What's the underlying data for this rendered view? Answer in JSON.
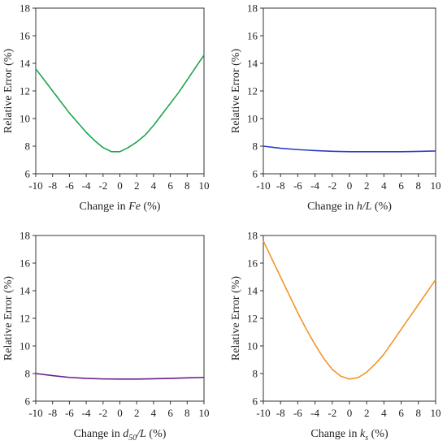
{
  "chart_data": [
    {
      "type": "line",
      "xlabel_prefix": "Change in ",
      "xlabel_var": "Fe",
      "xlabel_sub": "",
      "xlabel_rest": "",
      "xlabel_suffix": " (%)",
      "ylabel": "Relative Error (%)",
      "xlim": [
        -10,
        10
      ],
      "ylim": [
        6,
        18
      ],
      "xticks": [
        -10,
        -8,
        -6,
        -4,
        -2,
        0,
        2,
        4,
        6,
        8,
        10
      ],
      "yticks": [
        6,
        8,
        10,
        12,
        14,
        16,
        18
      ],
      "grid": false,
      "color": "#1aa64a",
      "series": [
        {
          "x": [
            -10,
            -9,
            -8,
            -7,
            -6,
            -5,
            -4,
            -3,
            -2,
            -1,
            0,
            1,
            2,
            3,
            4,
            5,
            6,
            7,
            8,
            9,
            10
          ],
          "y": [
            13.6,
            12.8,
            12.0,
            11.2,
            10.4,
            9.7,
            9.0,
            8.4,
            7.9,
            7.6,
            7.6,
            7.9,
            8.3,
            8.8,
            9.5,
            10.3,
            11.1,
            11.9,
            12.8,
            13.7,
            14.6
          ]
        }
      ]
    },
    {
      "type": "line",
      "xlabel_prefix": "Change in ",
      "xlabel_var": "h",
      "xlabel_sub": "",
      "xlabel_rest": "/L",
      "xlabel_suffix": " (%)",
      "ylabel": "Relative Error (%)",
      "xlim": [
        -10,
        10
      ],
      "ylim": [
        6,
        18
      ],
      "xticks": [
        -10,
        -8,
        -6,
        -4,
        -2,
        0,
        2,
        4,
        6,
        8,
        10
      ],
      "yticks": [
        6,
        8,
        10,
        12,
        14,
        16,
        18
      ],
      "grid": false,
      "color": "#2a3cc8",
      "series": [
        {
          "x": [
            -10,
            -8,
            -6,
            -4,
            -2,
            0,
            2,
            4,
            6,
            8,
            10
          ],
          "y": [
            8.0,
            7.85,
            7.75,
            7.68,
            7.63,
            7.6,
            7.6,
            7.6,
            7.6,
            7.62,
            7.65
          ]
        }
      ]
    },
    {
      "type": "line",
      "xlabel_prefix": "Change in ",
      "xlabel_var": "d",
      "xlabel_sub": "50",
      "xlabel_rest": "/L",
      "xlabel_suffix": " (%)",
      "ylabel": "Relative Error (%)",
      "xlim": [
        -10,
        10
      ],
      "ylim": [
        6,
        18
      ],
      "xticks": [
        -10,
        -8,
        -6,
        -4,
        -2,
        0,
        2,
        4,
        6,
        8,
        10
      ],
      "yticks": [
        6,
        8,
        10,
        12,
        14,
        16,
        18
      ],
      "grid": false,
      "color": "#6a1f8a",
      "series": [
        {
          "x": [
            -10,
            -8,
            -6,
            -4,
            -2,
            0,
            2,
            4,
            6,
            8,
            10
          ],
          "y": [
            8.0,
            7.85,
            7.72,
            7.65,
            7.61,
            7.6,
            7.6,
            7.62,
            7.65,
            7.69,
            7.72
          ]
        }
      ]
    },
    {
      "type": "line",
      "xlabel_prefix": "Change in ",
      "xlabel_var": "k",
      "xlabel_sub": "s",
      "xlabel_rest": "",
      "xlabel_suffix": " (%)",
      "ylabel": "Relative Error (%)",
      "xlim": [
        -10,
        10
      ],
      "ylim": [
        6,
        18
      ],
      "xticks": [
        -10,
        -8,
        -6,
        -4,
        -2,
        0,
        2,
        4,
        6,
        8,
        10
      ],
      "yticks": [
        6,
        8,
        10,
        12,
        14,
        16,
        18
      ],
      "grid": false,
      "color": "#f0962a",
      "series": [
        {
          "x": [
            -10,
            -9,
            -8,
            -7,
            -6,
            -5,
            -4,
            -3,
            -2,
            -1,
            0,
            1,
            2,
            3,
            4,
            5,
            6,
            7,
            8,
            9,
            10
          ],
          "y": [
            17.6,
            16.3,
            15.0,
            13.7,
            12.4,
            11.2,
            10.1,
            9.1,
            8.3,
            7.8,
            7.6,
            7.7,
            8.1,
            8.7,
            9.4,
            10.3,
            11.2,
            12.1,
            13.0,
            13.9,
            14.8
          ]
        }
      ]
    }
  ]
}
